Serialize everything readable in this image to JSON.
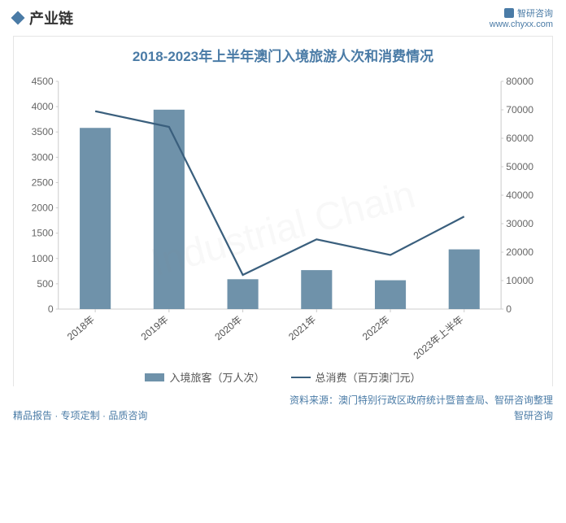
{
  "section_title": "产业链",
  "watermark_ghost": "Industrial Chain",
  "brand_name": "智研咨询",
  "brand_url": "www.chyxx.com",
  "chart": {
    "type": "combo-bar-line",
    "title": "2018-2023年上半年澳门入境旅游人次和消费情况",
    "categories": [
      "2018年",
      "2019年",
      "2020年",
      "2021年",
      "2022年",
      "2023年上半年"
    ],
    "bar": {
      "label": "入境旅客（万人次）",
      "values": [
        3580,
        3940,
        590,
        770,
        570,
        1180
      ],
      "color": "#6f92aa"
    },
    "line": {
      "label": "总消费（百万澳门元）",
      "values": [
        69500,
        64000,
        12000,
        24500,
        19000,
        32500
      ],
      "color": "#3a5f7d"
    },
    "y_left": {
      "min": 0,
      "max": 4500,
      "step": 500
    },
    "y_right": {
      "min": 0,
      "max": 80000,
      "step": 10000
    },
    "bar_width_ratio": 0.42,
    "line_width": 2.2,
    "plot_bg": "#ffffff",
    "grid_color": "#ffffff",
    "axis_color": "#cccccc",
    "tick_font_size": 12,
    "xlabel_rotation": -40
  },
  "source_text": "资料来源：澳门特别行政区政府统计暨普查局、智研咨询整理",
  "footer_left": "精品报告 · 专项定制 · 品质咨询",
  "footer_right": "智研咨询"
}
